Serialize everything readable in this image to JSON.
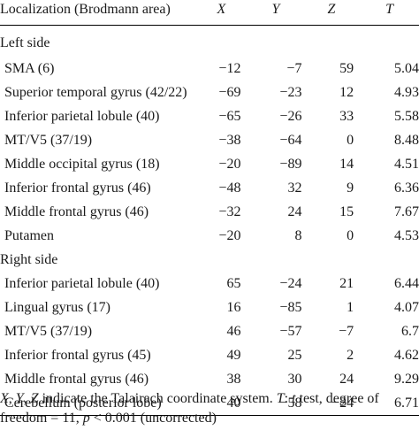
{
  "table": {
    "headers": {
      "localization": "Localization (Brodmann area)",
      "x": "X",
      "y": "Y",
      "z": "Z",
      "t": "T"
    },
    "left_side": {
      "label": "Left side",
      "rows": [
        {
          "region": "SMA (6)",
          "x": "−12",
          "y": "−7",
          "z": "59",
          "t": "5.04"
        },
        {
          "region": "Superior temporal gyrus (42/22)",
          "x": "−69",
          "y": "−23",
          "z": "12",
          "t": "4.93"
        },
        {
          "region": "Inferior parietal lobule (40)",
          "x": "−65",
          "y": "−26",
          "z": "33",
          "t": "5.58"
        },
        {
          "region": "MT/V5 (37/19)",
          "x": "−38",
          "y": "−64",
          "z": "0",
          "t": "8.48"
        },
        {
          "region": "Middle occipital gyrus (18)",
          "x": "−20",
          "y": "−89",
          "z": "14",
          "t": "4.51"
        },
        {
          "region": "Inferior frontal gyrus (46)",
          "x": "−48",
          "y": "32",
          "z": "9",
          "t": "6.36"
        },
        {
          "region": "Middle frontal gyrus (46)",
          "x": "−32",
          "y": "24",
          "z": "15",
          "t": "7.67"
        },
        {
          "region": "Putamen",
          "x": "−20",
          "y": "8",
          "z": "0",
          "t": "4.53"
        }
      ]
    },
    "right_side": {
      "label": "Right side",
      "rows": [
        {
          "region": "Inferior parietal lobule (40)",
          "x": "65",
          "y": "−24",
          "z": "21",
          "t": "6.44"
        },
        {
          "region": "Lingual gyrus (17)",
          "x": "16",
          "y": "−85",
          "z": "1",
          "t": "4.07"
        },
        {
          "region": "MT/V5 (37/19)",
          "x": "46",
          "y": "−57",
          "z": "−7",
          "t": "6.7"
        },
        {
          "region": "Inferior frontal gyrus (45)",
          "x": "49",
          "y": "25",
          "z": "2",
          "t": "4.62"
        },
        {
          "region": "Middle frontal gyrus (46)",
          "x": "38",
          "y": "30",
          "z": "24",
          "t": "9.29"
        },
        {
          "region": "Cerebellum (posterior lobe)",
          "x": "40",
          "y": "−58",
          "z": "−24",
          "t": "6.71"
        }
      ]
    }
  },
  "footnote": {
    "x": "X",
    "sep1": ", ",
    "y": "Y",
    "sep2": ", ",
    "z": "Z",
    "text1": " indicate the Talairach coordinate system. ",
    "t": "T",
    "text2": ": ",
    "t2": "t",
    "text3": " test, degree of freedom = 11, ",
    "p": "p",
    "text4": " < 0.001 (uncorrected)"
  }
}
